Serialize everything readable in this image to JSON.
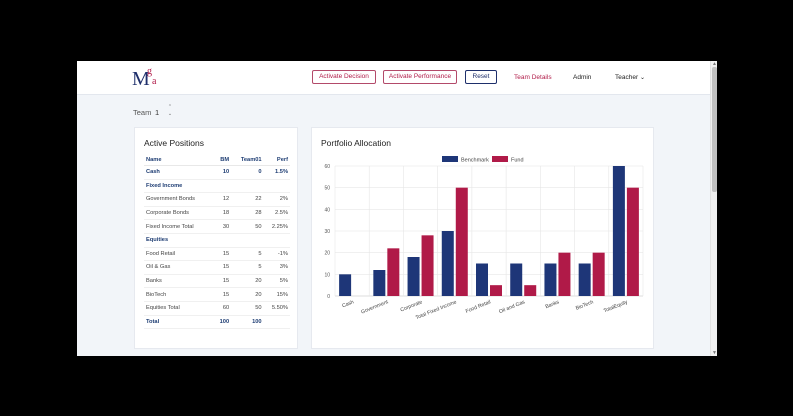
{
  "header": {
    "logo": {
      "m": "M",
      "g": "g",
      "a": "a"
    },
    "buttons": {
      "activate_decision": "Activate Decision",
      "activate_performance": "Activate Performance",
      "reset": "Reset"
    },
    "nav": {
      "team_details": "Team Details",
      "admin": "Admin",
      "teacher": "Teacher",
      "teacher_caret": "⌄"
    }
  },
  "team": {
    "label": "Team",
    "value": "1",
    "up": "⌃",
    "down": "⌄"
  },
  "positions": {
    "title": "Active Positions",
    "columns": [
      "Name",
      "BM",
      "Team01",
      "Perf"
    ],
    "rows": [
      {
        "name": "Cash",
        "bm": "10",
        "team": "0",
        "perf": "1.5%",
        "type": "sec"
      },
      {
        "name": "Fixed Income",
        "bm": "",
        "team": "",
        "perf": "",
        "type": "sec"
      },
      {
        "name": "Government Bonds",
        "bm": "12",
        "team": "22",
        "perf": "2%",
        "type": ""
      },
      {
        "name": "Corporate Bonds",
        "bm": "18",
        "team": "28",
        "perf": "2.5%",
        "type": ""
      },
      {
        "name": "Fixed Income Total",
        "bm": "30",
        "team": "50",
        "perf": "2.25%",
        "type": ""
      },
      {
        "name": "Equities",
        "bm": "",
        "team": "",
        "perf": "",
        "type": "sec"
      },
      {
        "name": "Food Retail",
        "bm": "15",
        "team": "5",
        "perf": "-1%",
        "type": ""
      },
      {
        "name": "Oil & Gas",
        "bm": "15",
        "team": "5",
        "perf": "3%",
        "type": ""
      },
      {
        "name": "Banks",
        "bm": "15",
        "team": "20",
        "perf": "5%",
        "type": ""
      },
      {
        "name": "BioTech",
        "bm": "15",
        "team": "20",
        "perf": "15%",
        "type": ""
      },
      {
        "name": "Equities Total",
        "bm": "60",
        "team": "50",
        "perf": "5.50%",
        "type": ""
      },
      {
        "name": "Total",
        "bm": "100",
        "team": "100",
        "perf": "",
        "type": "tot"
      }
    ]
  },
  "allocation": {
    "title": "Portfolio Allocation"
  },
  "colors": {
    "benchmark": "#1e3678",
    "fund": "#b01a48",
    "accent": "#b11d4a",
    "navy": "#1e2f6b"
  },
  "chart_data": {
    "type": "bar",
    "categories": [
      "Cash",
      "Government",
      "Corporate",
      "Total Fixed Income",
      "Food Retail",
      "Oil and Gas",
      "Banks",
      "BioTech",
      "TotalEquity"
    ],
    "series": [
      {
        "name": "Benchmark",
        "values": [
          10,
          12,
          18,
          30,
          15,
          15,
          15,
          15,
          60
        ]
      },
      {
        "name": "Fund",
        "values": [
          0,
          22,
          28,
          50,
          5,
          5,
          20,
          20,
          50
        ]
      }
    ],
    "ylim": [
      0,
      60
    ],
    "yticks": [
      0,
      10,
      20,
      30,
      40,
      50,
      60
    ],
    "legend": "top-center",
    "grid": true
  }
}
